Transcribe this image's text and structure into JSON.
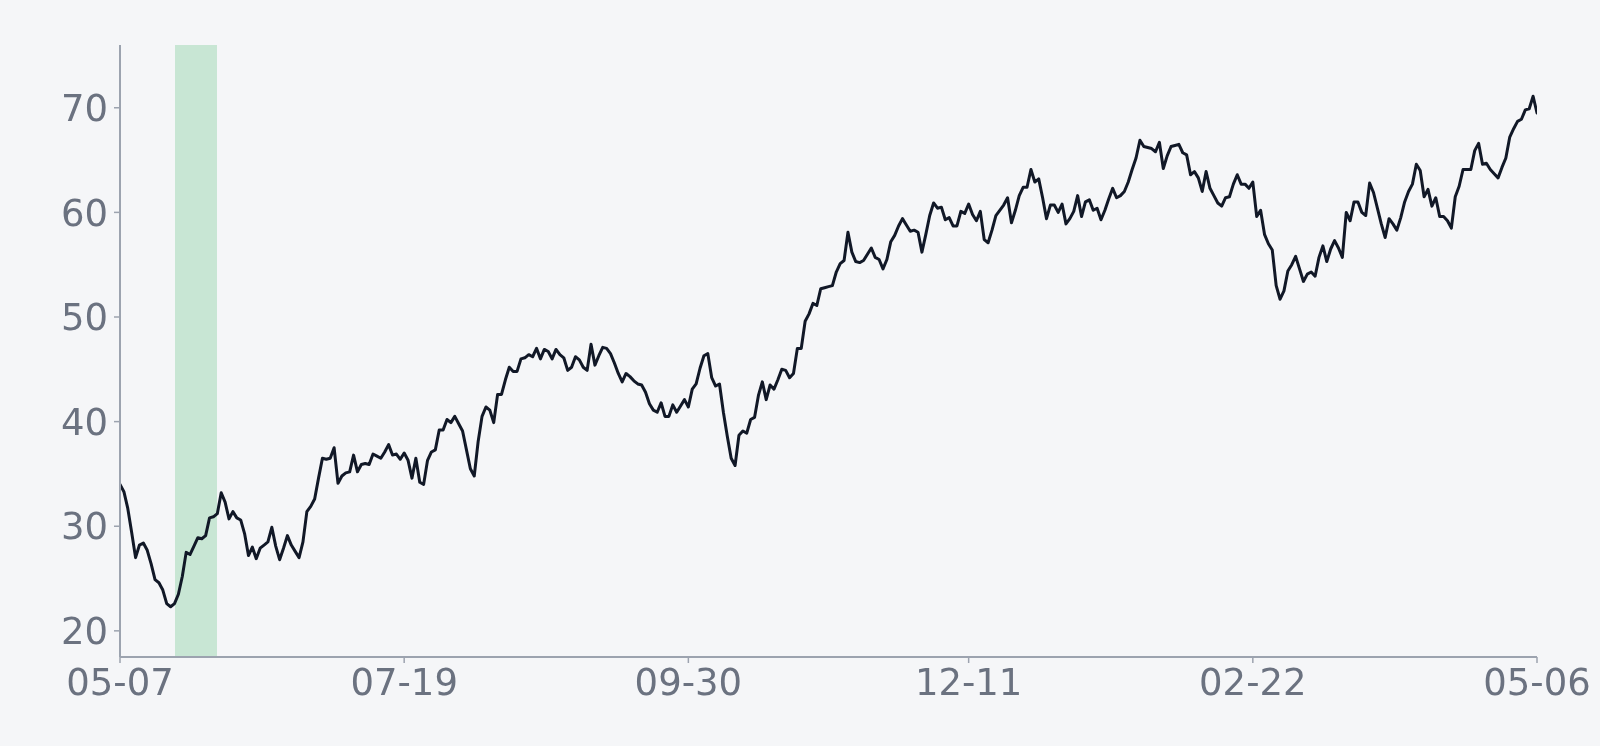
{
  "chart_data": {
    "type": "line",
    "categories": [
      "05-07",
      null,
      null,
      null,
      null,
      null,
      null,
      null,
      null,
      null,
      null,
      null,
      null,
      null,
      null,
      null,
      null,
      null,
      null,
      null,
      null,
      null,
      null,
      null,
      null,
      null,
      null,
      null,
      null,
      null,
      null,
      null,
      null,
      null,
      null,
      null,
      null,
      null,
      null,
      null,
      null,
      null,
      null,
      null,
      null,
      null,
      null,
      null,
      null,
      null,
      null,
      null,
      null,
      null,
      null,
      null,
      null,
      null,
      null,
      null,
      null,
      null,
      null,
      null,
      null,
      null,
      null,
      null,
      null,
      null,
      null,
      null,
      null,
      "07-19",
      null,
      null,
      null,
      null,
      null,
      null,
      null,
      null,
      null,
      null,
      null,
      null,
      null,
      null,
      null,
      null,
      null,
      null,
      null,
      null,
      null,
      null,
      null,
      null,
      null,
      null,
      null,
      null,
      null,
      null,
      null,
      null,
      null,
      null,
      null,
      null,
      null,
      null,
      null,
      null,
      null,
      null,
      null,
      null,
      null,
      null,
      null,
      null,
      null,
      null,
      null,
      null,
      null,
      null,
      null,
      null,
      null,
      null,
      null,
      null,
      null,
      null,
      null,
      null,
      null,
      null,
      null,
      null,
      null,
      null,
      null,
      null,
      "09-30",
      null,
      null,
      null,
      null,
      null,
      null,
      null,
      null,
      null,
      null,
      null,
      null,
      null,
      null,
      null,
      null,
      null,
      null,
      null,
      null,
      null,
      null,
      null,
      null,
      null,
      null,
      null,
      null,
      null,
      null,
      null,
      null,
      null,
      null,
      null,
      null,
      null,
      null,
      null,
      null,
      null,
      null,
      null,
      null,
      null,
      null,
      null,
      null,
      null,
      null,
      null,
      null,
      null,
      null,
      null,
      null,
      null,
      null,
      null,
      null,
      null,
      null,
      null,
      null,
      null,
      null,
      null,
      null,
      null,
      null,
      null,
      "12-11",
      null,
      null,
      null,
      null,
      null,
      null,
      null,
      null,
      null,
      null,
      null,
      null,
      null,
      null,
      null,
      null,
      null,
      null,
      null,
      null,
      null,
      null,
      null,
      null,
      null,
      null,
      null,
      null,
      null,
      null,
      null,
      null,
      null,
      null,
      null,
      null,
      null,
      null,
      null,
      null,
      null,
      null,
      null,
      null,
      null,
      null,
      null,
      null,
      null,
      null,
      null,
      null,
      null,
      null,
      null,
      null,
      null,
      null,
      null,
      null,
      null,
      null,
      null,
      null,
      null,
      null,
      null,
      null,
      null,
      null,
      null,
      null,
      "02-22",
      null,
      null,
      null,
      null,
      null,
      null,
      null,
      null,
      null,
      null,
      null,
      null,
      null,
      null,
      null,
      null,
      null,
      null,
      null,
      null,
      null,
      null,
      null,
      null,
      null,
      null,
      null,
      null,
      null,
      null,
      null,
      null,
      null,
      null,
      null,
      null,
      null,
      null,
      null,
      null,
      null,
      null,
      null,
      null,
      null,
      null,
      null,
      null,
      null,
      null,
      null,
      null,
      null,
      null,
      null,
      null,
      null,
      null,
      null,
      null,
      null,
      null,
      null,
      null,
      null,
      null,
      null,
      null,
      null,
      null,
      null,
      null,
      "05-06"
    ],
    "series": [
      {
        "color": "#111827",
        "values": [
          34.0,
          33.3,
          31.7,
          29.4,
          27.0,
          28.2,
          28.4,
          27.7,
          26.4,
          24.9,
          24.6,
          23.9,
          22.6,
          22.3,
          22.6,
          23.5,
          25.2,
          27.5,
          27.3,
          28.1,
          28.9,
          28.8,
          29.1,
          30.8,
          30.9,
          31.2,
          33.2,
          32.3,
          30.7,
          31.4,
          30.8,
          30.6,
          29.3,
          27.2,
          28.0,
          26.9,
          27.9,
          28.2,
          28.5,
          29.9,
          28.1,
          26.8,
          27.9,
          29.1,
          28.2,
          27.6,
          27.0,
          28.5,
          31.4,
          31.9,
          32.6,
          34.6,
          36.5,
          36.4,
          36.5,
          37.5,
          34.1,
          34.8,
          35.1,
          35.2,
          36.8,
          35.2,
          35.9,
          36.0,
          35.9,
          36.9,
          36.7,
          36.5,
          37.1,
          37.8,
          36.8,
          36.9,
          36.4,
          37.0,
          36.3,
          34.6,
          36.5,
          34.2,
          34.0,
          36.3,
          37.1,
          37.3,
          39.2,
          39.2,
          40.2,
          39.9,
          40.5,
          39.8,
          39.1,
          37.3,
          35.5,
          34.8,
          38.1,
          40.5,
          41.4,
          41.1,
          39.9,
          42.6,
          42.6,
          44.0,
          45.2,
          44.8,
          44.8,
          46.0,
          46.1,
          46.4,
          46.2,
          47.0,
          46.0,
          46.9,
          46.7,
          46.0,
          46.9,
          46.4,
          46.1,
          44.9,
          45.2,
          46.2,
          45.9,
          45.2,
          44.9,
          47.4,
          45.4,
          46.3,
          47.1,
          47.0,
          46.5,
          45.6,
          44.6,
          43.8,
          44.6,
          44.3,
          43.9,
          43.6,
          43.5,
          42.8,
          41.7,
          41.1,
          40.9,
          41.8,
          40.5,
          40.5,
          41.6,
          40.9,
          41.5,
          42.1,
          41.4,
          43.1,
          43.6,
          45.1,
          46.3,
          46.5,
          44.2,
          43.4,
          43.6,
          40.9,
          38.6,
          36.5,
          35.8,
          38.7,
          39.1,
          38.9,
          40.2,
          40.4,
          42.5,
          43.8,
          42.1,
          43.5,
          43.1,
          44.0,
          45.0,
          44.9,
          44.2,
          44.6,
          47.0,
          47.0,
          49.6,
          50.3,
          51.3,
          51.1,
          52.7,
          52.8,
          52.9,
          53.0,
          54.3,
          55.1,
          55.4,
          58.1,
          56.2,
          55.3,
          55.2,
          55.4,
          56.0,
          56.6,
          55.7,
          55.5,
          54.6,
          55.5,
          57.2,
          57.8,
          58.7,
          59.4,
          58.8,
          58.2,
          58.3,
          58.1,
          56.2,
          57.9,
          59.7,
          60.9,
          60.4,
          60.5,
          59.3,
          59.5,
          58.7,
          58.7,
          60.1,
          59.9,
          60.8,
          59.8,
          59.2,
          60.1,
          57.4,
          57.1,
          58.3,
          59.7,
          60.2,
          60.7,
          61.4,
          59.0,
          60.2,
          61.6,
          62.4,
          62.4,
          64.1,
          62.9,
          63.2,
          61.4,
          59.4,
          60.7,
          60.7,
          60.0,
          60.8,
          58.9,
          59.4,
          60.1,
          61.6,
          59.6,
          61.0,
          61.2,
          60.2,
          60.4,
          59.3,
          60.2,
          61.3,
          62.3,
          61.4,
          61.6,
          62.0,
          62.9,
          64.1,
          65.2,
          66.9,
          66.3,
          66.2,
          66.1,
          65.8,
          66.7,
          64.2,
          65.4,
          66.3,
          66.4,
          66.5,
          65.7,
          65.5,
          63.6,
          63.9,
          63.3,
          62.0,
          63.9,
          62.3,
          61.6,
          60.9,
          60.6,
          61.4,
          61.5,
          62.7,
          63.6,
          62.7,
          62.7,
          62.3,
          62.9,
          59.6,
          60.2,
          57.9,
          57.0,
          56.4,
          53.0,
          51.7,
          52.5,
          54.4,
          55.0,
          55.8,
          54.6,
          53.4,
          54.1,
          54.3,
          53.9,
          55.7,
          56.8,
          55.3,
          56.5,
          57.3,
          56.6,
          55.7,
          60.0,
          59.2,
          61.0,
          61.0,
          60.0,
          59.7,
          62.8,
          61.9,
          60.4,
          58.9,
          57.6,
          59.4,
          58.9,
          58.3,
          59.5,
          61.0,
          62.0,
          62.7,
          64.6,
          64.0,
          61.5,
          62.2,
          60.6,
          61.4,
          59.6,
          59.6,
          59.2,
          58.5,
          61.5,
          62.5,
          64.1,
          64.1,
          64.1,
          65.9,
          66.6,
          64.6,
          64.7,
          64.1,
          63.7,
          63.3,
          64.3,
          65.2,
          67.2,
          68.0,
          68.7,
          68.9,
          69.8,
          69.9,
          71.1,
          69.5
        ]
      }
    ],
    "ylim": [
      17.5,
      76
    ],
    "yticks": [
      20,
      30,
      40,
      50,
      60,
      70
    ]
  }
}
